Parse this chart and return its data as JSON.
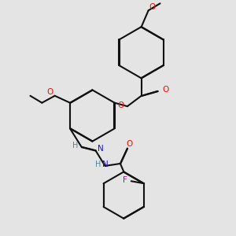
{
  "bg_color": "#e4e4e4",
  "bond_color": "#111111",
  "oxygen_color": "#ee1100",
  "nitrogen_color": "#2211cc",
  "fluorine_color": "#bb00bb",
  "hcolor": "#448899",
  "lw": 1.5,
  "dbg": 0.012,
  "fs": 7.5,
  "xlim": [
    0,
    10
  ],
  "ylim": [
    0,
    10
  ]
}
